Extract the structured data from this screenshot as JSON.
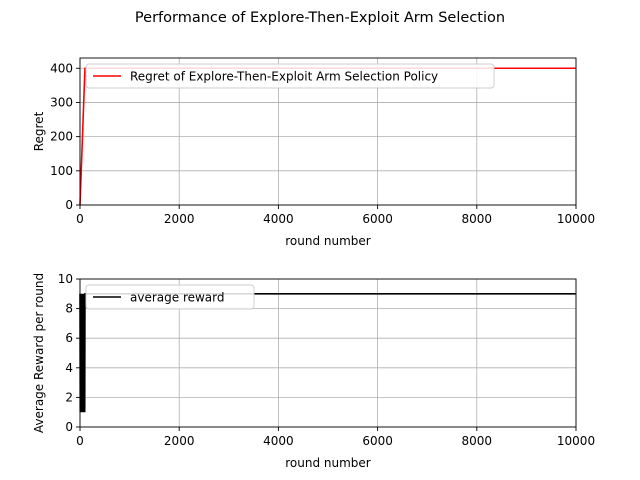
{
  "figure": {
    "title": "Performance of Explore-Then-Exploit Arm Selection"
  },
  "chart_data": [
    {
      "type": "line",
      "xlabel": "round number",
      "ylabel": "Regret",
      "xlim": [
        0,
        10000
      ],
      "ylim": [
        0,
        430
      ],
      "xticks": [
        "0",
        "2000",
        "4000",
        "6000",
        "8000",
        "10000"
      ],
      "yticks": [
        "0",
        "100",
        "200",
        "300",
        "400"
      ],
      "grid": true,
      "legend_position": "upper-left",
      "series": [
        {
          "name": "Regret of Explore-Then-Exploit Arm Selection Policy",
          "color": "#ff0000",
          "x": [
            0,
            100,
            10000
          ],
          "y": [
            0,
            400,
            400
          ]
        }
      ]
    },
    {
      "type": "line",
      "xlabel": "round number",
      "ylabel": "Average Reward per round",
      "xlim": [
        0,
        10000
      ],
      "ylim": [
        0,
        10
      ],
      "xticks": [
        "0",
        "2000",
        "4000",
        "6000",
        "8000",
        "10000"
      ],
      "yticks": [
        "0",
        "2",
        "4",
        "6",
        "8",
        "10"
      ],
      "grid": true,
      "legend_position": "upper-left",
      "series": [
        {
          "name": "average reward",
          "color": "#000000",
          "x": [
            0,
            5,
            10,
            15,
            20,
            25,
            30,
            35,
            40,
            45,
            50,
            55,
            60,
            65,
            70,
            75,
            80,
            85,
            90,
            95,
            100,
            10000
          ],
          "y": [
            9,
            1,
            9,
            1,
            9,
            1,
            9,
            1,
            9,
            1,
            9,
            1,
            9,
            1,
            9,
            1,
            9,
            1,
            9,
            1,
            9,
            9
          ]
        }
      ]
    }
  ]
}
